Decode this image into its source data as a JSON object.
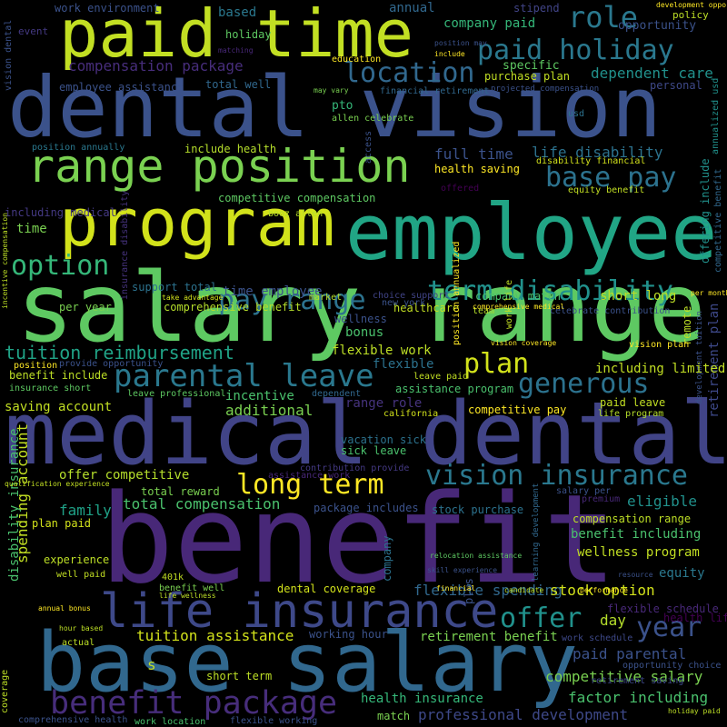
{
  "words": [
    "paid time",
    "dental vision",
    "salary range",
    "medical dental",
    "benefit",
    "base salary",
    "program",
    "employee",
    "range position",
    "life insurance",
    "benefit package",
    "parental leave",
    "pay range",
    "term disability",
    "option",
    "tuition reimbursement",
    "long term",
    "vision insurance",
    "offer",
    "year",
    "plan",
    "generous",
    "role",
    "paid holiday",
    "location",
    "base pay",
    "compensation package",
    "employee assistance",
    "work environment",
    "based",
    "annual",
    "stipend",
    "event",
    "holiday",
    "company paid",
    "policy",
    "opportunity",
    "education",
    "include",
    "specific",
    "dependent care",
    "purchase plan",
    "total well",
    "financial retirement",
    "projected compensation",
    "personal",
    "may vary",
    "pto",
    "allen celebrate",
    "usd",
    "annualized usd",
    "position annually",
    "include health",
    "full time",
    "life disability",
    "health saving",
    "disability financial",
    "including medical",
    "competitive compensation",
    "booz allen",
    "offered",
    "equity benefit",
    "time",
    "time employee",
    "company match",
    "short long",
    "support total",
    "take advantage",
    "market",
    "choice support",
    "comprehensive benefit",
    "per year",
    "healthcare",
    "team",
    "new york",
    "wellness",
    "bonus",
    "flexible work",
    "flexible",
    "position",
    "provide opportunity",
    "benefit include",
    "insurance short",
    "leave paid",
    "assistance program",
    "leave professional",
    "incentive",
    "dependent",
    "saving account",
    "additional",
    "range role",
    "california",
    "competitive pay",
    "paid leave",
    "life program",
    "vacation sick",
    "sick leave",
    "contribution provide",
    "assistance work",
    "offer competitive",
    "total reward",
    "family",
    "total compensation",
    "package includes",
    "stock purchase",
    "eligible",
    "compensation range",
    "plan paid",
    "benefit including",
    "experience",
    "wellness program",
    "well paid",
    "equity",
    "401k",
    "benefit well",
    "life wellness",
    "dental coverage",
    "flexible spending",
    "stock option",
    "flexible schedule",
    "health life",
    "day",
    "tuition assistance",
    "working hour",
    "retirement benefit",
    "work schedule",
    "actual",
    "paid parental",
    "opportunity choice",
    "short term",
    "competitive salary",
    "health insurance",
    "factor including",
    "comprehensive health",
    "work location",
    "flexible working",
    "match",
    "professional development",
    "holiday paid",
    "s",
    "remote",
    "retirement plan",
    "development tuition",
    "offering include",
    "competitive benefit",
    "spending account",
    "disability insurance",
    "company",
    "vision dental",
    "insurance disability",
    "position annualized",
    "work life",
    "access",
    "learning development",
    "plus",
    "incentive compensation",
    "coverage",
    "hour based",
    "annual bonus",
    "position may",
    "matching",
    "development opportunity",
    "relocation assistance",
    "candidate",
    "performance",
    "resource",
    "vision coverage",
    "per month",
    "celebrate contribution",
    "vision plan",
    "including limited",
    "comprehensive medical",
    "premium",
    "salary per",
    "retirement saving",
    "skill experience",
    "financial",
    "qualification experience"
  ]
}
